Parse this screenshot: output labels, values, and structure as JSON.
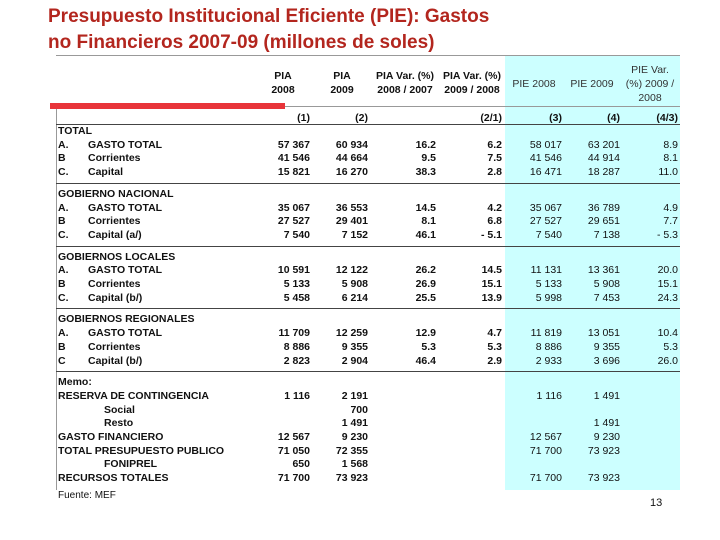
{
  "title_lines": [
    "Presupuesto Institucional Eficiente (PIE): Gastos",
    "no Financieros 2007-09 (millones de soles)"
  ],
  "table": {
    "columns": [
      [
        "PIA",
        "2008"
      ],
      [
        "PIA",
        "2009"
      ],
      [
        "PIA Var. (%)",
        "2008 / 2007"
      ],
      [
        "PIA Var. (%)",
        "2009 / 2008"
      ],
      [
        "PIE 2008"
      ],
      [
        "PIE 2009"
      ],
      [
        "PIE Var.",
        "(%) 2009 /",
        "2008"
      ]
    ],
    "column_numbers": [
      "(1)",
      "(2)",
      null,
      "(2/1)",
      "(3)",
      "(4)",
      "(4/3)"
    ],
    "sections": [
      {
        "section": "TOTAL",
        "rows": [
          {
            "prefix": "A.",
            "label": "GASTO TOTAL",
            "cells": [
              "57 367",
              "60 934",
              "16.2",
              "6.2",
              "58 017",
              "63 201",
              "8.9"
            ]
          },
          {
            "prefix": "B",
            "label": "Corrientes",
            "cells": [
              "41 546",
              "44 664",
              "9.5",
              "7.5",
              "41 546",
              "44 914",
              "8.1"
            ]
          },
          {
            "prefix": "C.",
            "label": "Capital",
            "cells": [
              "15 821",
              "16 270",
              "38.3",
              "2.8",
              "16 471",
              "18 287",
              "11.0"
            ]
          }
        ]
      },
      {
        "section": "GOBIERNO NACIONAL",
        "rows": [
          {
            "prefix": "A.",
            "label": "GASTO TOTAL",
            "cells": [
              "35 067",
              "36 553",
              "14.5",
              "4.2",
              "35 067",
              "36 789",
              "4.9"
            ]
          },
          {
            "prefix": "B",
            "label": "Corrientes",
            "cells": [
              "27 527",
              "29 401",
              "8.1",
              "6.8",
              "27 527",
              "29 651",
              "7.7"
            ]
          },
          {
            "prefix": "C.",
            "label": "Capital (a/)",
            "cells": [
              "7 540",
              "7 152",
              "46.1",
              "- 5.1",
              "7 540",
              "7 138",
              "- 5.3"
            ]
          }
        ]
      },
      {
        "section": "GOBIERNOS LOCALES",
        "rows": [
          {
            "prefix": "A.",
            "label": "GASTO TOTAL",
            "cells": [
              "10 591",
              "12 122",
              "26.2",
              "14.5",
              "11 131",
              "13 361",
              "20.0"
            ]
          },
          {
            "prefix": "B",
            "label": "Corrientes",
            "cells": [
              "5 133",
              "5 908",
              "26.9",
              "15.1",
              "5 133",
              "5 908",
              "15.1"
            ]
          },
          {
            "prefix": "C.",
            "label": "Capital (b/)",
            "cells": [
              "5 458",
              "6 214",
              "25.5",
              "13.9",
              "5 998",
              "7 453",
              "24.3"
            ]
          }
        ]
      },
      {
        "section": "GOBIERNOS REGIONALES",
        "rows": [
          {
            "prefix": "A.",
            "label": "GASTO TOTAL",
            "cells": [
              "11 709",
              "12 259",
              "12.9",
              "4.7",
              "11 819",
              "13 051",
              "10.4"
            ]
          },
          {
            "prefix": "B",
            "label": "Corrientes",
            "cells": [
              "8 886",
              "9 355",
              "5.3",
              "5.3",
              "8 886",
              "9 355",
              "5.3"
            ]
          },
          {
            "prefix": "C",
            "label": "Capital (b/)",
            "cells": [
              "2 823",
              "2 904",
              "46.4",
              "2.9",
              "2 933",
              "3 696",
              "26.0"
            ]
          }
        ]
      },
      {
        "section": "Memo:",
        "rows": [
          {
            "label": "RESERVA DE CONTINGENCIA",
            "cells": [
              "1 116",
              "2 191",
              null,
              null,
              "1 116",
              "1 491",
              null
            ],
            "items": [
              {
                "label": "Social",
                "cells": [
                  null,
                  "700",
                  null,
                  null,
                  null,
                  null,
                  null
                ]
              },
              {
                "label": "Resto",
                "cells": [
                  null,
                  "1 491",
                  null,
                  null,
                  null,
                  "1 491",
                  null
                ]
              }
            ]
          },
          {
            "label": "GASTO FINANCIERO",
            "cells": [
              "12 567",
              "9 230",
              null,
              null,
              "12 567",
              "9 230",
              null
            ]
          },
          {
            "label": "TOTAL PRESUPUESTO PUBLICO",
            "cells": [
              "71 050",
              "72 355",
              null,
              null,
              "71 700",
              "73 923",
              null
            ],
            "items": [
              {
                "label": "FONIPREL",
                "cells": [
                  "650",
                  "1 568",
                  null,
                  null,
                  null,
                  null,
                  null
                ]
              }
            ]
          },
          {
            "label": "RECURSOS TOTALES",
            "cells": [
              "71 700",
              "73 923",
              null,
              null,
              "71 700",
              "73 923",
              null
            ]
          }
        ]
      }
    ]
  },
  "footer": {
    "source": "Fuente: MEF",
    "page": "13"
  }
}
